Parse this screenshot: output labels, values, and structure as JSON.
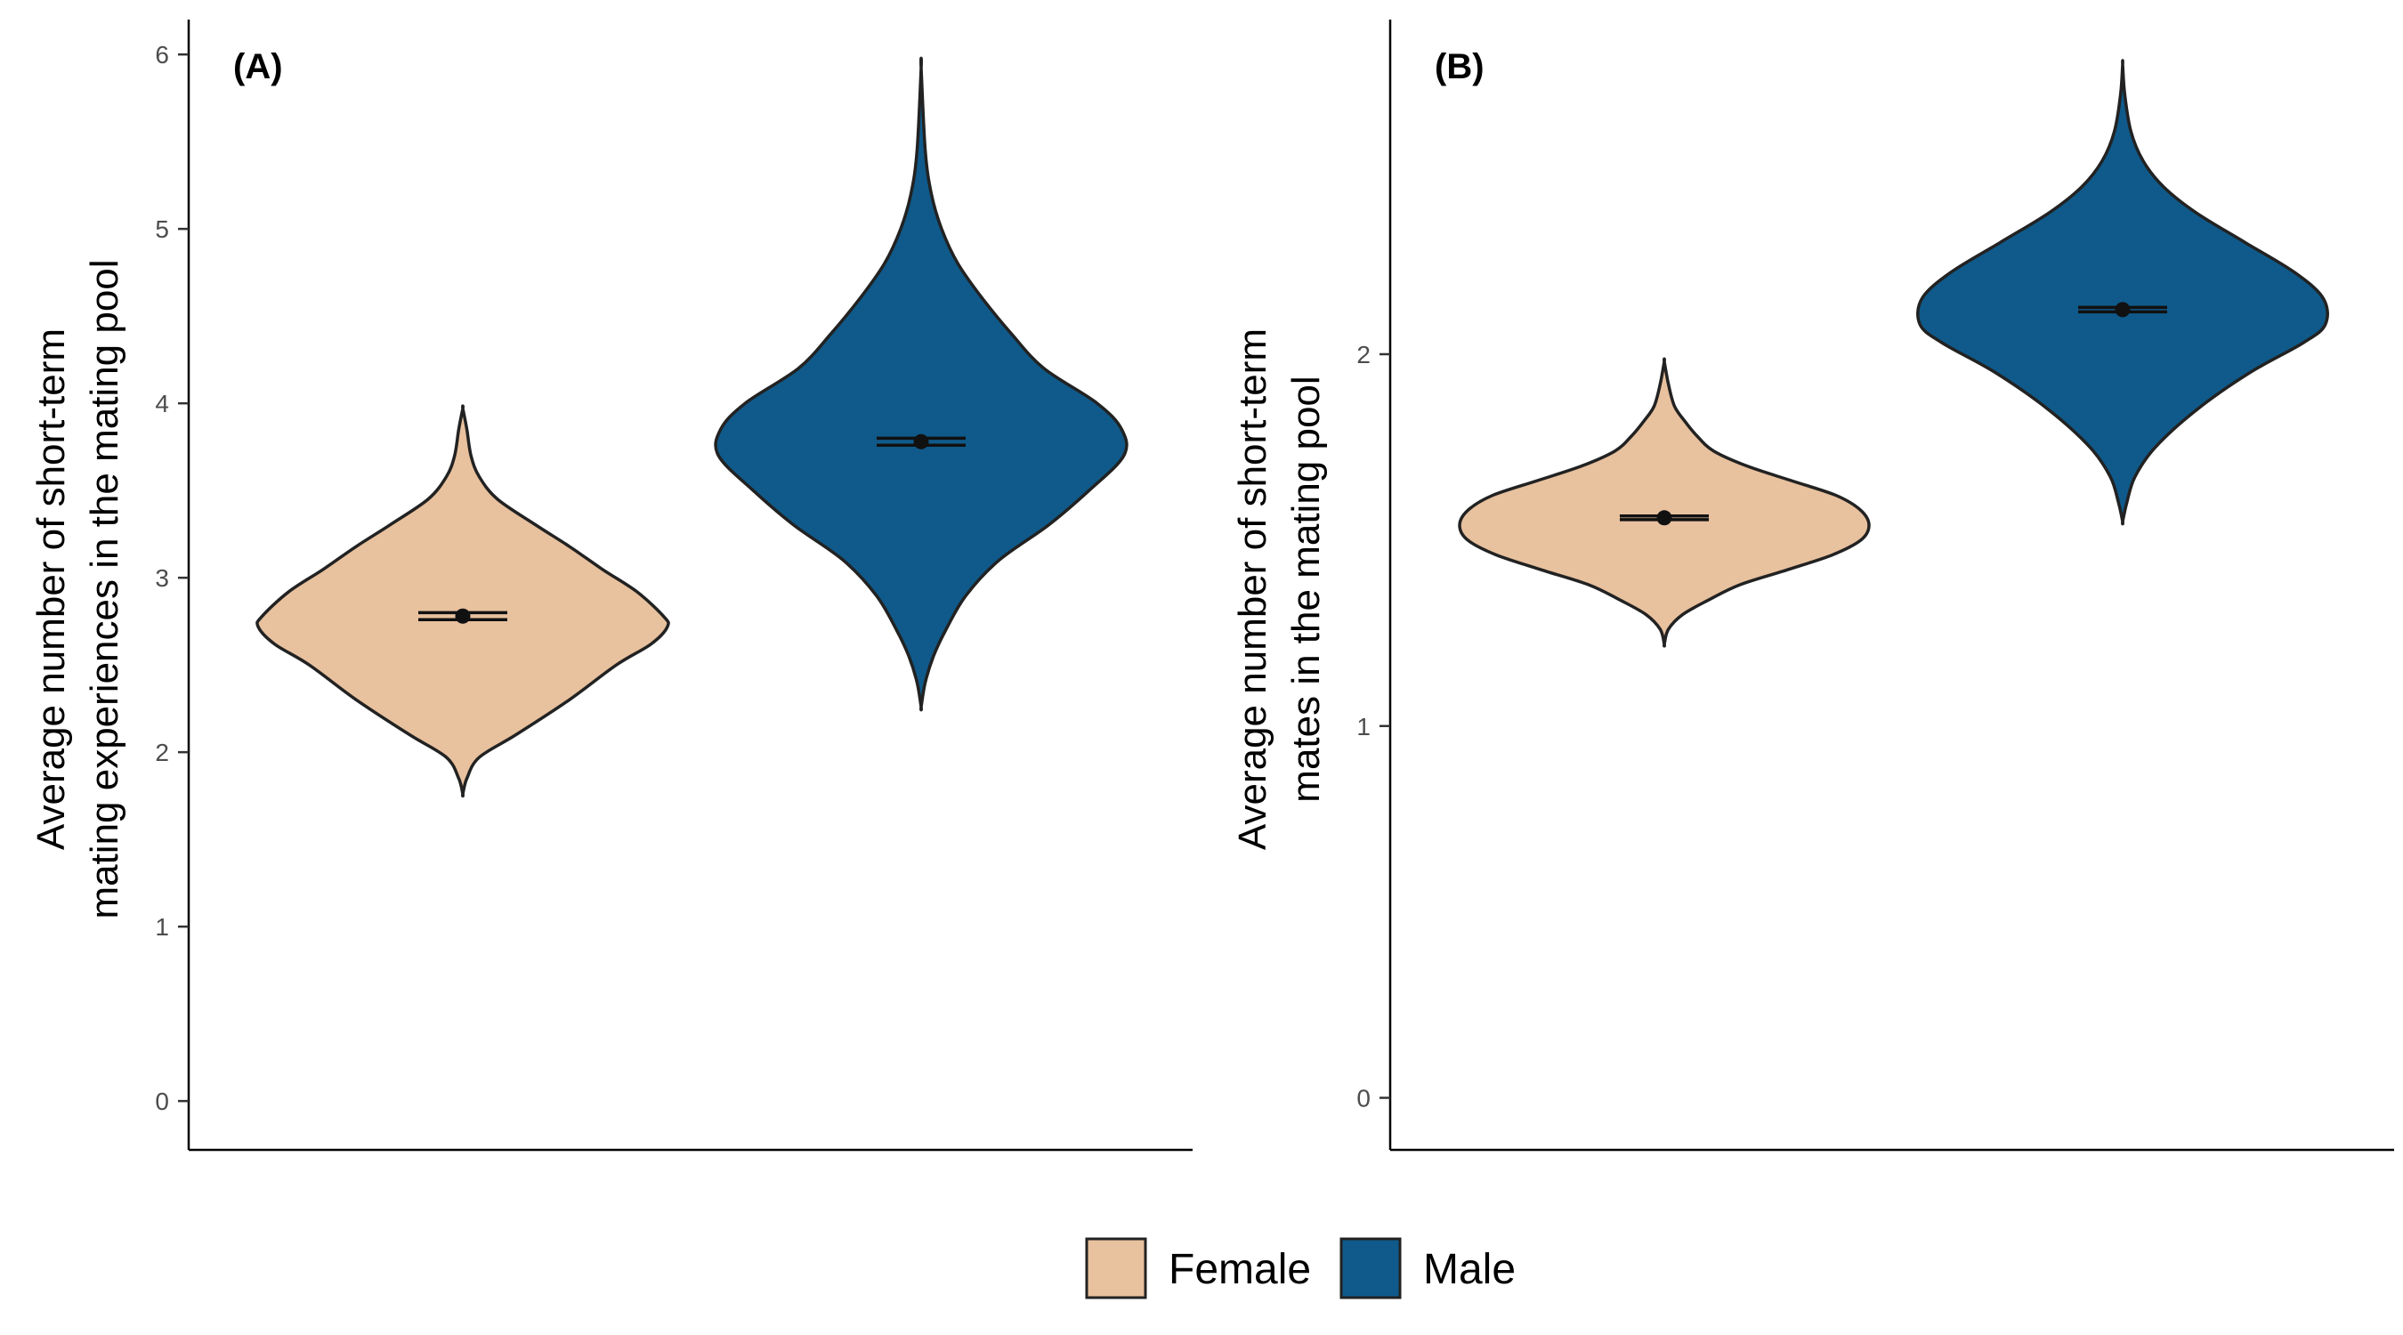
{
  "chart_data": [
    {
      "type": "violin",
      "panel_label": "(A)",
      "ylabel": [
        "Average number of short-term",
        "mating experiences in the mating pool"
      ],
      "ylim": [
        -0.28,
        6.2
      ],
      "yticks": [
        0,
        1,
        2,
        3,
        4,
        5,
        6
      ],
      "tick_labels": [
        "0",
        "1",
        "2",
        "3",
        "4",
        "5",
        "6"
      ],
      "series": [
        {
          "name": "Female",
          "color": "#E8C19E",
          "mean": 2.78,
          "ci": [
            2.76,
            2.8
          ],
          "ymin": 1.76,
          "ymax": 3.97,
          "density": [
            [
              1.76,
              0.0
            ],
            [
              1.85,
              0.02
            ],
            [
              1.97,
              0.08
            ],
            [
              2.1,
              0.26
            ],
            [
              2.3,
              0.52
            ],
            [
              2.5,
              0.75
            ],
            [
              2.62,
              0.92
            ],
            [
              2.72,
              1.0
            ],
            [
              2.78,
              0.98
            ],
            [
              2.92,
              0.85
            ],
            [
              3.05,
              0.68
            ],
            [
              3.18,
              0.52
            ],
            [
              3.3,
              0.36
            ],
            [
              3.45,
              0.17
            ],
            [
              3.58,
              0.08
            ],
            [
              3.7,
              0.04
            ],
            [
              3.85,
              0.02
            ],
            [
              3.97,
              0.0
            ]
          ]
        },
        {
          "name": "Male",
          "color": "#0F5A8A",
          "mean": 3.78,
          "ci": [
            3.76,
            3.8
          ],
          "ymin": 2.26,
          "ymax": 5.92,
          "density": [
            [
              2.26,
              0.0
            ],
            [
              2.4,
              0.02
            ],
            [
              2.55,
              0.06
            ],
            [
              2.7,
              0.12
            ],
            [
              2.9,
              0.22
            ],
            [
              3.1,
              0.38
            ],
            [
              3.3,
              0.62
            ],
            [
              3.5,
              0.82
            ],
            [
              3.7,
              0.99
            ],
            [
              3.85,
              0.98
            ],
            [
              4.0,
              0.86
            ],
            [
              4.2,
              0.6
            ],
            [
              4.4,
              0.44
            ],
            [
              4.6,
              0.3
            ],
            [
              4.8,
              0.18
            ],
            [
              5.0,
              0.1
            ],
            [
              5.2,
              0.05
            ],
            [
              5.45,
              0.02
            ],
            [
              5.92,
              0.0
            ]
          ]
        }
      ]
    },
    {
      "type": "violin",
      "panel_label": "(B)",
      "ylabel": [
        "Average number of short-term",
        "mates in the mating pool"
      ],
      "ylim": [
        -0.14,
        2.9
      ],
      "yticks": [
        0,
        1,
        2
      ],
      "tick_labels": [
        "0",
        "1",
        "2"
      ],
      "series": [
        {
          "name": "Female",
          "color": "#E8C19E",
          "mean": 1.56,
          "ci": [
            1.555,
            1.565
          ],
          "ymin": 1.22,
          "ymax": 1.98,
          "density": [
            [
              1.22,
              0.0
            ],
            [
              1.26,
              0.02
            ],
            [
              1.3,
              0.09
            ],
            [
              1.34,
              0.22
            ],
            [
              1.38,
              0.37
            ],
            [
              1.42,
              0.6
            ],
            [
              1.46,
              0.82
            ],
            [
              1.5,
              0.96
            ],
            [
              1.54,
              1.0
            ],
            [
              1.58,
              0.96
            ],
            [
              1.62,
              0.84
            ],
            [
              1.66,
              0.62
            ],
            [
              1.7,
              0.4
            ],
            [
              1.74,
              0.24
            ],
            [
              1.78,
              0.16
            ],
            [
              1.82,
              0.1
            ],
            [
              1.86,
              0.05
            ],
            [
              1.92,
              0.02
            ],
            [
              1.98,
              0.0
            ]
          ]
        },
        {
          "name": "Male",
          "color": "#0F5A8A",
          "mean": 2.12,
          "ci": [
            2.114,
            2.126
          ],
          "ymin": 1.55,
          "ymax": 2.78,
          "density": [
            [
              1.55,
              0.0
            ],
            [
              1.6,
              0.02
            ],
            [
              1.67,
              0.06
            ],
            [
              1.75,
              0.16
            ],
            [
              1.85,
              0.36
            ],
            [
              1.95,
              0.62
            ],
            [
              2.03,
              0.88
            ],
            [
              2.08,
              0.99
            ],
            [
              2.15,
              0.98
            ],
            [
              2.22,
              0.84
            ],
            [
              2.3,
              0.6
            ],
            [
              2.38,
              0.36
            ],
            [
              2.45,
              0.2
            ],
            [
              2.52,
              0.1
            ],
            [
              2.6,
              0.04
            ],
            [
              2.7,
              0.01
            ],
            [
              2.78,
              0.0
            ]
          ]
        }
      ]
    }
  ],
  "legend": {
    "position": "bottom",
    "entries": [
      {
        "label": "Female",
        "color": "#E8C19E"
      },
      {
        "label": "Male",
        "color": "#0F5A8A"
      }
    ]
  }
}
